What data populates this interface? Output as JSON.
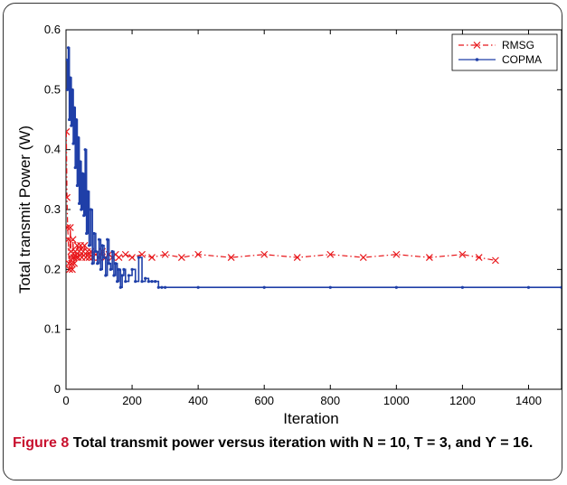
{
  "chart_data": {
    "type": "line",
    "xlabel": "Iteration",
    "ylabel": "Total transmit Power (W)",
    "xlim": [
      0,
      1500
    ],
    "ylim": [
      0,
      0.6
    ],
    "xticks": [
      0,
      200,
      400,
      600,
      800,
      1000,
      1200,
      1400
    ],
    "yticks": [
      0,
      0.1,
      0.2,
      0.3,
      0.4,
      0.5,
      0.6
    ],
    "legend_position": "top-right",
    "series": [
      {
        "name": "RMSG",
        "color": "#e8161a",
        "line_style": "dash-dot",
        "marker": "x",
        "x": [
          1,
          3,
          5,
          7,
          9,
          11,
          13,
          15,
          17,
          19,
          21,
          23,
          25,
          28,
          31,
          34,
          37,
          40,
          44,
          48,
          52,
          56,
          60,
          65,
          70,
          75,
          80,
          90,
          100,
          110,
          120,
          130,
          140,
          150,
          160,
          180,
          200,
          230,
          260,
          300,
          350,
          400,
          500,
          600,
          700,
          800,
          900,
          1000,
          1100,
          1200,
          1250,
          1300
        ],
        "y": [
          0.43,
          0.32,
          0.27,
          0.25,
          0.21,
          0.2,
          0.27,
          0.23,
          0.21,
          0.2,
          0.25,
          0.22,
          0.21,
          0.23,
          0.22,
          0.24,
          0.22,
          0.23,
          0.24,
          0.22,
          0.23,
          0.24,
          0.22,
          0.23,
          0.22,
          0.23,
          0.22,
          0.225,
          0.22,
          0.23,
          0.22,
          0.225,
          0.22,
          0.225,
          0.22,
          0.225,
          0.22,
          0.225,
          0.22,
          0.225,
          0.22,
          0.225,
          0.22,
          0.225,
          0.22,
          0.225,
          0.22,
          0.225,
          0.22,
          0.225,
          0.22,
          0.215
        ]
      },
      {
        "name": "COPMA",
        "color": "#1f3fa8",
        "line_style": "solid",
        "marker": "dot",
        "x": [
          1,
          4,
          7,
          10,
          13,
          16,
          19,
          22,
          25,
          28,
          31,
          34,
          37,
          40,
          43,
          46,
          50,
          54,
          58,
          62,
          66,
          70,
          75,
          80,
          85,
          90,
          95,
          100,
          105,
          110,
          115,
          120,
          125,
          130,
          135,
          140,
          145,
          150,
          155,
          160,
          165,
          170,
          175,
          180,
          190,
          200,
          210,
          220,
          230,
          240,
          250,
          260,
          270,
          280,
          290,
          300,
          400,
          600,
          800,
          1000,
          1200,
          1400,
          1500
        ],
        "y": [
          0.55,
          0.5,
          0.57,
          0.45,
          0.52,
          0.44,
          0.5,
          0.41,
          0.47,
          0.37,
          0.45,
          0.34,
          0.42,
          0.31,
          0.38,
          0.3,
          0.36,
          0.29,
          0.4,
          0.26,
          0.33,
          0.24,
          0.3,
          0.21,
          0.26,
          0.23,
          0.21,
          0.25,
          0.2,
          0.24,
          0.22,
          0.19,
          0.25,
          0.21,
          0.2,
          0.23,
          0.19,
          0.21,
          0.18,
          0.2,
          0.17,
          0.19,
          0.2,
          0.18,
          0.19,
          0.2,
          0.18,
          0.22,
          0.18,
          0.185,
          0.18,
          0.18,
          0.18,
          0.17,
          0.17,
          0.17,
          0.17,
          0.17,
          0.17,
          0.17,
          0.17,
          0.17,
          0.17
        ]
      }
    ]
  },
  "caption": {
    "label": "Figure 8",
    "text": "Total transmit power versus iteration with N = 10, T = 3, and ϒ = 16."
  },
  "colors": {
    "caption_label": "#c8102e",
    "axis": "#000000"
  }
}
